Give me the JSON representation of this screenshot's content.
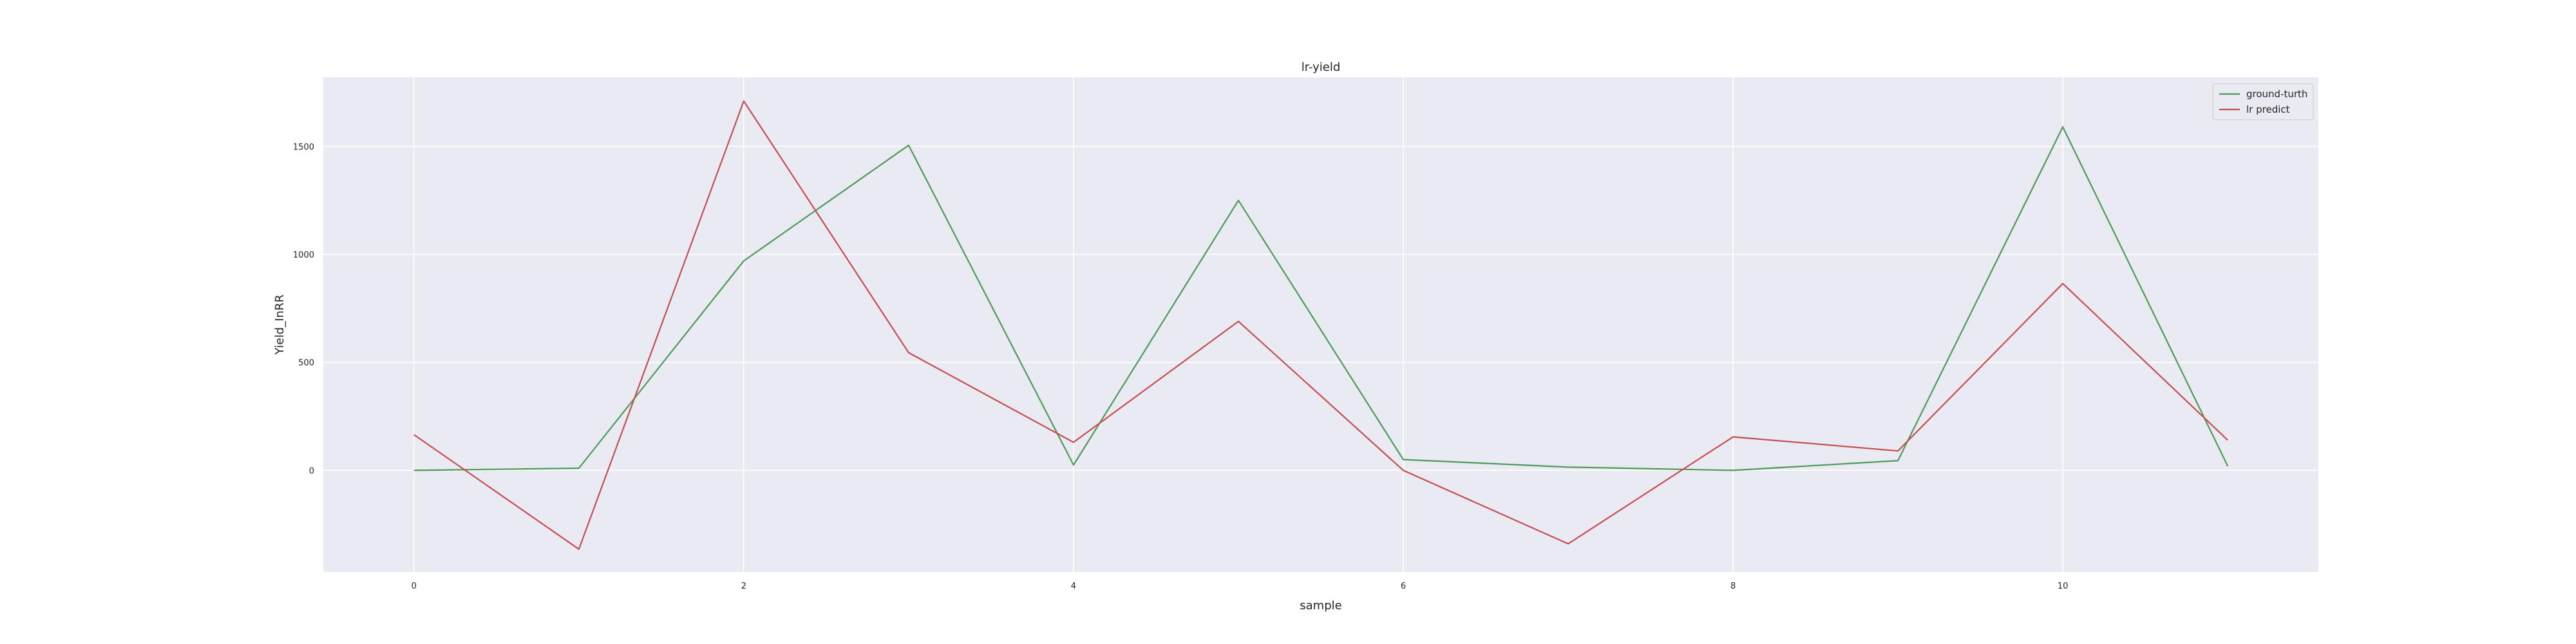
{
  "chart_data": {
    "type": "line",
    "title": "lr-yield",
    "xlabel": "sample",
    "ylabel": "Yield_InRR",
    "xlim": [
      -0.55,
      11.55
    ],
    "ylim": [
      -470,
      1820
    ],
    "xticks": [
      0,
      2,
      4,
      6,
      8,
      10
    ],
    "yticks": [
      0,
      500,
      1000,
      1500
    ],
    "grid": true,
    "legend_position": "top-right",
    "x": [
      0,
      1,
      2,
      3,
      4,
      5,
      6,
      7,
      8,
      9,
      10,
      11
    ],
    "series": [
      {
        "name": "ground-turth",
        "color": "#4c9a5a",
        "values": [
          0,
          10,
          970,
          1505,
          25,
          1250,
          50,
          15,
          0,
          45,
          1590,
          20
        ]
      },
      {
        "name": "lr predict",
        "color": "#c44e52",
        "values": [
          165,
          -365,
          1710,
          545,
          130,
          690,
          0,
          -340,
          155,
          90,
          865,
          140
        ]
      }
    ],
    "background_color": "#eaeaf2",
    "grid_color": "#ffffff"
  }
}
